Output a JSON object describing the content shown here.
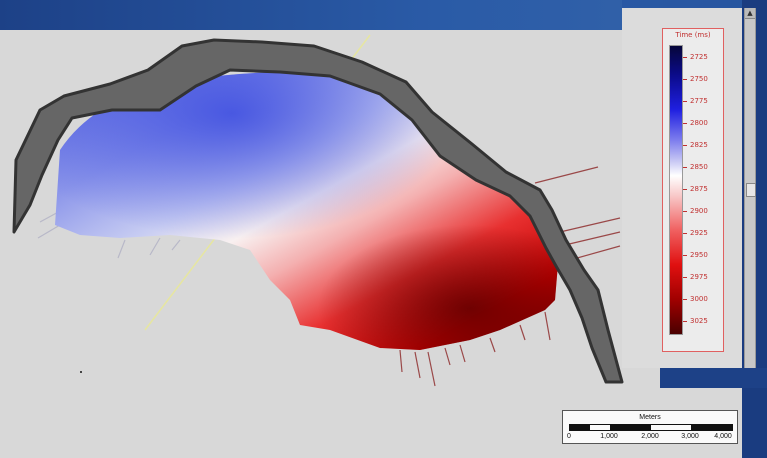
{
  "legend": {
    "title": "Time (ms)",
    "ticks": [
      "2725",
      "2750",
      "2775",
      "2800",
      "2825",
      "2850",
      "2875",
      "2900",
      "2925",
      "2950",
      "2975",
      "3000",
      "3025"
    ],
    "colors": {
      "low": "#0b0b8a",
      "mid": "#ffffff",
      "high": "#4a0000"
    }
  },
  "scalebar": {
    "title": "Meters",
    "labels": [
      "0",
      "1,000",
      "2,000",
      "3,000",
      "4,000"
    ]
  },
  "colors": {
    "background_blue": "#1d4187",
    "viewport": "#d8d8d8",
    "surface_outline": "#444444"
  }
}
